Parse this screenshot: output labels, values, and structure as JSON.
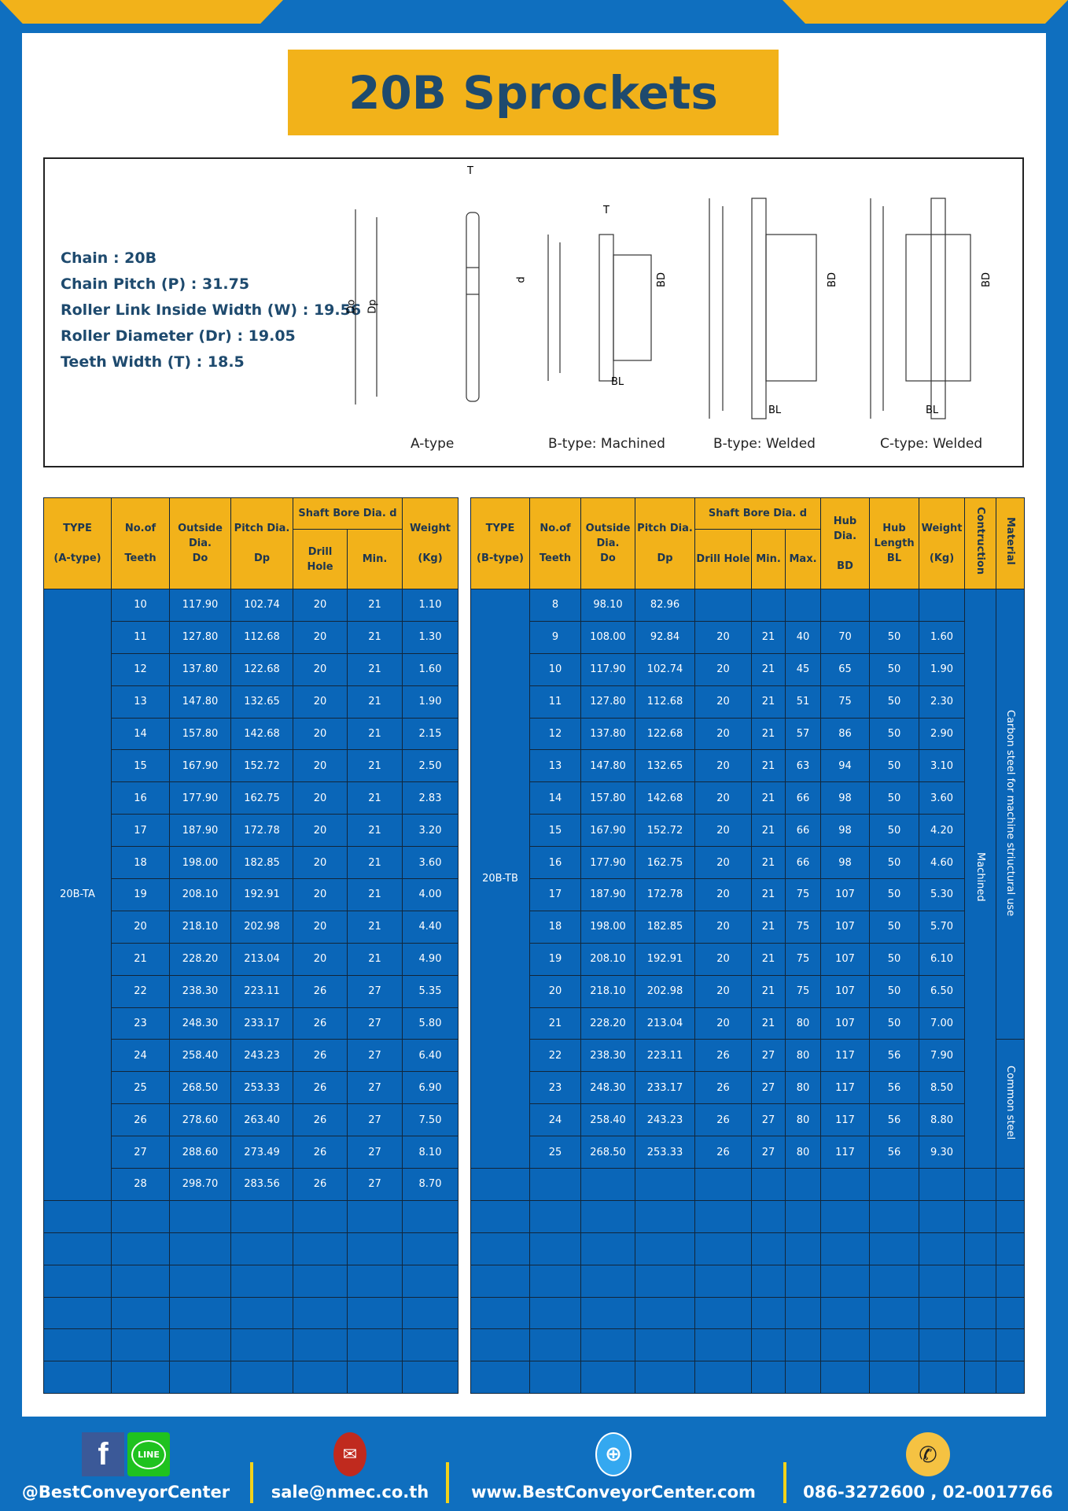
{
  "title": "20B Sprockets",
  "specs": [
    "Chain  : 20B",
    "Chain Pitch (P)  :  31.75",
    "Roller Link Inside Width (W)  :  19.56",
    "Roller Diameter (Dr)  : 19.05",
    "Teeth Width (T)  :  18.5"
  ],
  "diagram": {
    "types": [
      "A-type",
      "B-type: Machined",
      "B-type: Welded",
      "C-type: Welded"
    ],
    "dims": {
      "T": "T",
      "Do": "Do",
      "Dp": "Dp",
      "d": "d",
      "BD": "BD",
      "BL": "BL"
    }
  },
  "table_a": {
    "headers": {
      "type": "TYPE",
      "type_sub": "(A-type)",
      "teeth": "No.of",
      "teeth_sub": "Teeth",
      "outside": "Outside",
      "outside_mid": "Dia.",
      "outside_sub": "Do",
      "pitch": "Pitch Dia.",
      "pitch_sub": "Dp",
      "bore": "Shaft Bore Dia. d",
      "drill": "Drill Hole",
      "min": "Min.",
      "weight": "Weight",
      "weight_sub": "(Kg)"
    },
    "type_value": "20B-TA",
    "rows": [
      [
        "10",
        "117.90",
        "102.74",
        "20",
        "21",
        "1.10"
      ],
      [
        "11",
        "127.80",
        "112.68",
        "20",
        "21",
        "1.30"
      ],
      [
        "12",
        "137.80",
        "122.68",
        "20",
        "21",
        "1.60"
      ],
      [
        "13",
        "147.80",
        "132.65",
        "20",
        "21",
        "1.90"
      ],
      [
        "14",
        "157.80",
        "142.68",
        "20",
        "21",
        "2.15"
      ],
      [
        "15",
        "167.90",
        "152.72",
        "20",
        "21",
        "2.50"
      ],
      [
        "16",
        "177.90",
        "162.75",
        "20",
        "21",
        "2.83"
      ],
      [
        "17",
        "187.90",
        "172.78",
        "20",
        "21",
        "3.20"
      ],
      [
        "18",
        "198.00",
        "182.85",
        "20",
        "21",
        "3.60"
      ],
      [
        "19",
        "208.10",
        "192.91",
        "20",
        "21",
        "4.00"
      ],
      [
        "20",
        "218.10",
        "202.98",
        "20",
        "21",
        "4.40"
      ],
      [
        "21",
        "228.20",
        "213.04",
        "20",
        "21",
        "4.90"
      ],
      [
        "22",
        "238.30",
        "223.11",
        "26",
        "27",
        "5.35"
      ],
      [
        "23",
        "248.30",
        "233.17",
        "26",
        "27",
        "5.80"
      ],
      [
        "24",
        "258.40",
        "243.23",
        "26",
        "27",
        "6.40"
      ],
      [
        "25",
        "268.50",
        "253.33",
        "26",
        "27",
        "6.90"
      ],
      [
        "26",
        "278.60",
        "263.40",
        "26",
        "27",
        "7.50"
      ],
      [
        "27",
        "288.60",
        "273.49",
        "26",
        "27",
        "8.10"
      ],
      [
        "28",
        "298.70",
        "283.56",
        "26",
        "27",
        "8.70"
      ]
    ]
  },
  "table_b": {
    "headers": {
      "type": "TYPE",
      "type_sub": "(B-type)",
      "teeth": "No.of",
      "teeth_sub": "Teeth",
      "outside": "Outside",
      "outside_mid": "Dia.",
      "outside_sub": "Do",
      "pitch": "Pitch Dia.",
      "pitch_sub": "Dp",
      "bore": "Shaft Bore Dia. d",
      "drill": "Drill Hole",
      "min": "Min.",
      "max": "Max.",
      "hub_dia": "Hub Dia.",
      "hub_dia_sub": "BD",
      "hub_len": "Hub",
      "hub_len_mid": "Length",
      "hub_len_sub": "BL",
      "weight": "Weight",
      "weight_sub": "(Kg)",
      "construction": "Contruction",
      "material": "Material"
    },
    "type_value": "20B-TB",
    "construction_value": "Machined",
    "material_values": [
      "Carbon steel for machine striuctural use",
      "Common steel"
    ],
    "rows": [
      [
        "8",
        "98.10",
        "82.96",
        "",
        "",
        "",
        "",
        "",
        ""
      ],
      [
        "9",
        "108.00",
        "92.84",
        "20",
        "21",
        "40",
        "70",
        "50",
        "1.60"
      ],
      [
        "10",
        "117.90",
        "102.74",
        "20",
        "21",
        "45",
        "65",
        "50",
        "1.90"
      ],
      [
        "11",
        "127.80",
        "112.68",
        "20",
        "21",
        "51",
        "75",
        "50",
        "2.30"
      ],
      [
        "12",
        "137.80",
        "122.68",
        "20",
        "21",
        "57",
        "86",
        "50",
        "2.90"
      ],
      [
        "13",
        "147.80",
        "132.65",
        "20",
        "21",
        "63",
        "94",
        "50",
        "3.10"
      ],
      [
        "14",
        "157.80",
        "142.68",
        "20",
        "21",
        "66",
        "98",
        "50",
        "3.60"
      ],
      [
        "15",
        "167.90",
        "152.72",
        "20",
        "21",
        "66",
        "98",
        "50",
        "4.20"
      ],
      [
        "16",
        "177.90",
        "162.75",
        "20",
        "21",
        "66",
        "98",
        "50",
        "4.60"
      ],
      [
        "17",
        "187.90",
        "172.78",
        "20",
        "21",
        "75",
        "107",
        "50",
        "5.30"
      ],
      [
        "18",
        "198.00",
        "182.85",
        "20",
        "21",
        "75",
        "107",
        "50",
        "5.70"
      ],
      [
        "19",
        "208.10",
        "192.91",
        "20",
        "21",
        "75",
        "107",
        "50",
        "6.10"
      ],
      [
        "20",
        "218.10",
        "202.98",
        "20",
        "21",
        "75",
        "107",
        "50",
        "6.50"
      ],
      [
        "21",
        "228.20",
        "213.04",
        "20",
        "21",
        "80",
        "107",
        "50",
        "7.00"
      ],
      [
        "22",
        "238.30",
        "223.11",
        "26",
        "27",
        "80",
        "117",
        "56",
        "7.90"
      ],
      [
        "23",
        "248.30",
        "233.17",
        "26",
        "27",
        "80",
        "117",
        "56",
        "8.50"
      ],
      [
        "24",
        "258.40",
        "243.23",
        "26",
        "27",
        "80",
        "117",
        "56",
        "8.80"
      ],
      [
        "25",
        "268.50",
        "253.33",
        "26",
        "27",
        "80",
        "117",
        "56",
        "9.30"
      ]
    ]
  },
  "footer": {
    "social": "@BestConveyorCenter",
    "email": "sale@nmec.co.th",
    "website": "www.BestConveyorCenter.com",
    "phone": "086-3272600 , 02-0017766",
    "line_label": "LINE",
    "fb_label": "f"
  },
  "colors": {
    "blue": "#0a66b8",
    "yellow": "#f2b21a",
    "navy": "#1e4a6e"
  }
}
